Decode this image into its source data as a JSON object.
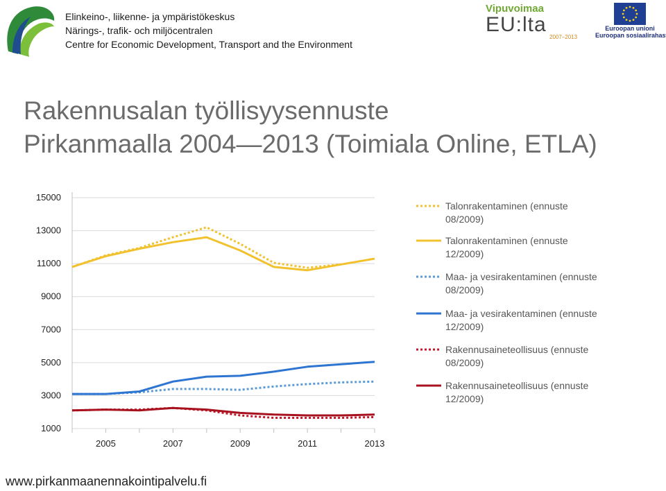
{
  "header": {
    "org_lines": [
      "Elinkeino-, liikenne- ja ympäristökeskus",
      "Närings-, trafik- och miljöcentralen",
      "Centre for Economic Development, Transport and the Environment"
    ],
    "vipuvoimaa": {
      "top": "Vipuvoimaa",
      "mid": "EU:lta",
      "years": "2007–2013"
    },
    "eu": {
      "line1": "Euroopan unioni",
      "line2": "Euroopan sosiaalirahasto"
    }
  },
  "title": {
    "line1": "Rakennusalan työllisyysennuste",
    "line2": "Pirkanmaalla 2004—2013 (Toimiala Online, ETLA)"
  },
  "footer": {
    "url": "www.pirkanmaanennakointipalvelu.fi"
  },
  "chart_data": {
    "type": "line",
    "x": [
      2004,
      2005,
      2006,
      2007,
      2008,
      2009,
      2010,
      2011,
      2012,
      2013
    ],
    "x_tick_labels": [
      "2005",
      "2007",
      "2009",
      "2011",
      "2013"
    ],
    "y_tick_labels": [
      "1000",
      "3000",
      "5000",
      "7000",
      "9000",
      "11000",
      "13000",
      "15000"
    ],
    "ylim": [
      1000,
      15000
    ],
    "grid": true,
    "legend_position": "right",
    "series": [
      {
        "name": "Talonrakentaminen (ennuste 08/2009)",
        "color": "#f2c12e",
        "style": "dotted",
        "values": [
          10800,
          11500,
          11950,
          12600,
          13200,
          12200,
          11050,
          10750,
          10950,
          null
        ]
      },
      {
        "name": "Talonrakentaminen (ennuste 12/2009)",
        "color": "#f2c12e",
        "style": "solid",
        "values": [
          10800,
          11450,
          11900,
          12300,
          12600,
          11800,
          10800,
          10600,
          10950,
          11300
        ]
      },
      {
        "name": "Maa- ja vesirakentaminen (ennuste 08/2009)",
        "color": "#5b9bd5",
        "style": "dotted",
        "values": [
          3100,
          3100,
          3200,
          3400,
          3400,
          3350,
          3550,
          3700,
          3800,
          3850
        ]
      },
      {
        "name": "Maa- ja vesirakentaminen  (ennuste 12/2009)",
        "color": "#2e75d1",
        "style": "solid",
        "values": [
          3100,
          3100,
          3250,
          3850,
          4150,
          4200,
          4450,
          4750,
          4900,
          5050
        ]
      },
      {
        "name": "Rakennusaineteollisuus (ennuste 08/2009)",
        "color": "#c0182a",
        "style": "dotted",
        "values": [
          2100,
          2150,
          2150,
          2250,
          2100,
          1800,
          1650,
          1650,
          1650,
          1700
        ]
      },
      {
        "name": "Rakennusaineteollisuus  (ennuste 12/2009)",
        "color": "#a8121f",
        "style": "solid",
        "values": [
          2100,
          2150,
          2100,
          2250,
          2150,
          1950,
          1850,
          1800,
          1800,
          1850
        ]
      }
    ]
  }
}
